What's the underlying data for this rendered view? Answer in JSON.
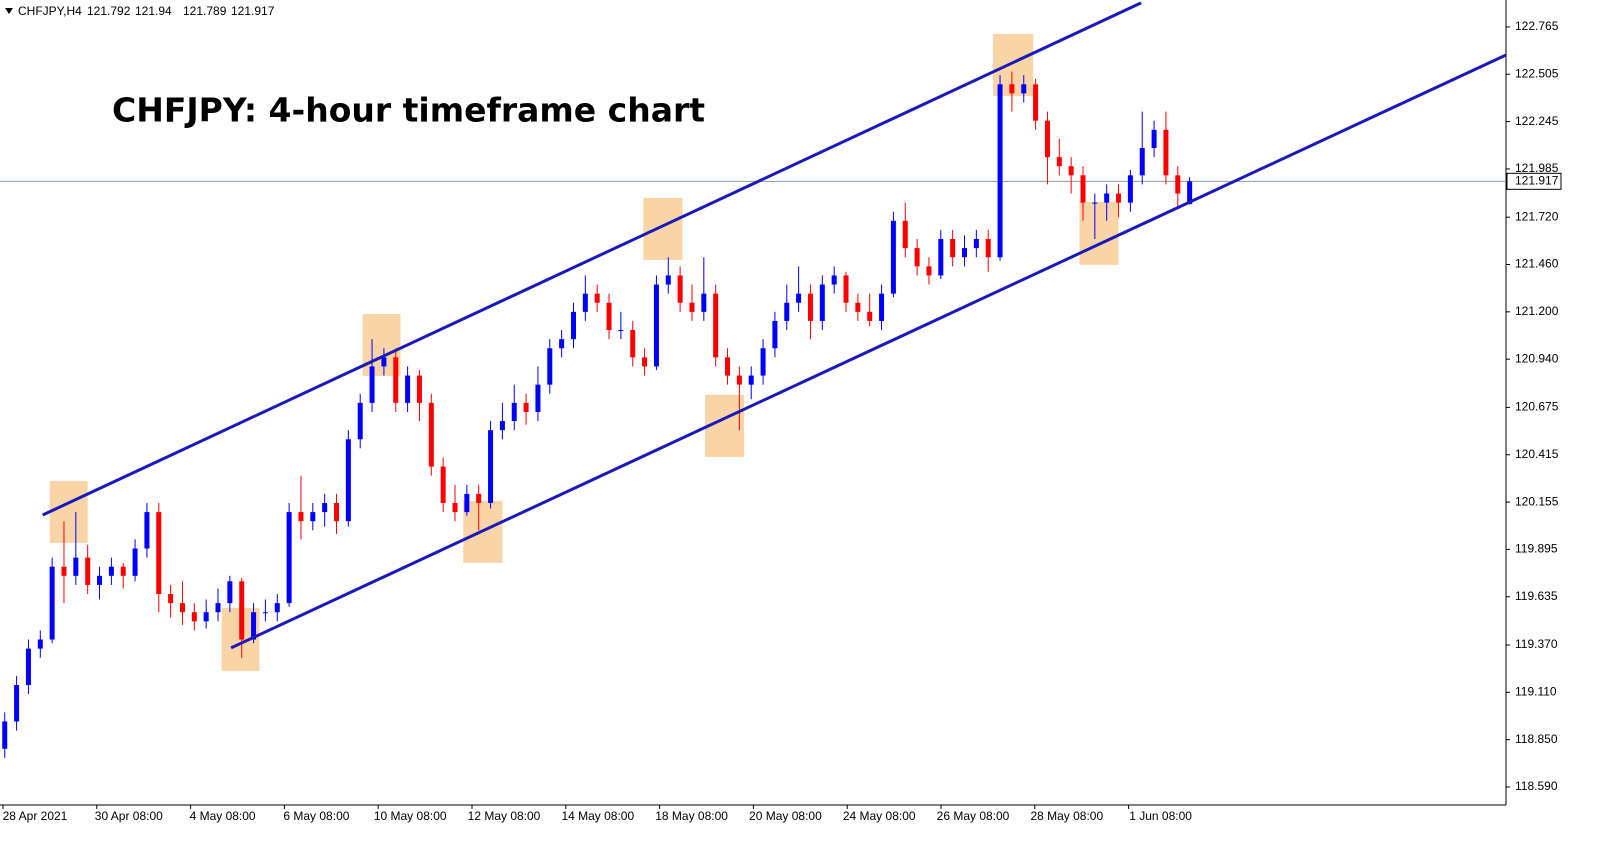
{
  "chart_data": {
    "type": "candlestick",
    "symbol": "CHFJPY,H4",
    "title": "CHFJPY: 4-hour timeframe chart",
    "up_color": "#0000ff",
    "down_color": "#ff0000",
    "ylim": [
      118.491,
      122.913
    ],
    "xlim": [
      -0.4,
      126.7
    ],
    "yticks": [
      122.765,
      122.505,
      122.245,
      121.985,
      {
        "value": 121.72,
        "label": "121.720"
      },
      {
        "value": 121.46,
        "label": "121.460"
      },
      {
        "value": 121.2,
        "label": "121.200"
      },
      {
        "value": 120.94,
        "label": "120.940"
      },
      120.675,
      120.415,
      120.155,
      119.895,
      119.635,
      {
        "value": 119.37,
        "label": "119.370"
      },
      {
        "value": 119.11,
        "label": "119.110"
      },
      {
        "value": 118.85,
        "label": "118.850"
      },
      {
        "value": 118.59,
        "label": "118.590"
      }
    ],
    "x_labels": [
      "28 Apr 2021",
      "30 Apr 08:00",
      "4 May 08:00",
      "6 May 08:00",
      "10 May 08:00",
      "12 May 08:00",
      "14 May 08:00",
      "18 May 08:00",
      "20 May 08:00",
      "24 May 08:00",
      "26 May 08:00",
      "28 May 08:00",
      "1 Jun 08:00"
    ],
    "candles": [
      [
        118.8,
        119.0,
        118.75,
        118.95
      ],
      [
        118.95,
        119.2,
        118.9,
        119.15
      ],
      [
        119.15,
        119.4,
        119.1,
        119.35
      ],
      [
        119.35,
        119.45,
        119.3,
        119.4
      ],
      [
        119.4,
        119.85,
        119.38,
        119.8
      ],
      [
        119.8,
        120.05,
        119.6,
        119.75
      ],
      [
        119.75,
        120.1,
        119.7,
        119.85
      ],
      [
        119.85,
        119.92,
        119.65,
        119.7
      ],
      [
        119.7,
        119.8,
        119.62,
        119.75
      ],
      [
        119.75,
        119.85,
        119.7,
        119.8
      ],
      [
        119.8,
        119.82,
        119.68,
        119.75
      ],
      [
        119.75,
        119.95,
        119.72,
        119.9
      ],
      [
        119.9,
        120.15,
        119.85,
        120.1
      ],
      [
        120.1,
        120.15,
        119.55,
        119.65
      ],
      [
        119.65,
        119.7,
        119.52,
        119.6
      ],
      [
        119.6,
        119.72,
        119.48,
        119.55
      ],
      [
        119.55,
        119.6,
        119.45,
        119.5
      ],
      [
        119.5,
        119.62,
        119.46,
        119.55
      ],
      [
        119.55,
        119.68,
        119.5,
        119.6
      ],
      [
        119.6,
        119.75,
        119.55,
        119.72
      ],
      [
        119.72,
        119.74,
        119.3,
        119.4
      ],
      [
        119.4,
        119.6,
        119.38,
        119.55
      ],
      [
        119.55,
        119.62,
        119.5,
        119.55
      ],
      [
        119.55,
        119.65,
        119.5,
        119.6
      ],
      [
        119.6,
        120.15,
        119.58,
        120.1
      ],
      [
        120.1,
        120.3,
        119.95,
        120.05
      ],
      [
        120.05,
        120.15,
        120.0,
        120.1
      ],
      [
        120.1,
        120.2,
        120.02,
        120.15
      ],
      [
        120.15,
        120.2,
        119.98,
        120.05
      ],
      [
        120.05,
        120.55,
        120.02,
        120.5
      ],
      [
        120.5,
        120.75,
        120.45,
        120.7
      ],
      [
        120.7,
        121.05,
        120.65,
        120.9
      ],
      [
        120.9,
        121.0,
        120.85,
        120.95
      ],
      [
        120.95,
        121.0,
        120.65,
        120.7
      ],
      [
        120.7,
        120.9,
        120.65,
        120.85
      ],
      [
        120.85,
        120.88,
        120.6,
        120.7
      ],
      [
        120.7,
        120.75,
        120.3,
        120.35
      ],
      [
        120.35,
        120.4,
        120.1,
        120.15
      ],
      [
        120.15,
        120.25,
        120.05,
        120.1
      ],
      [
        120.1,
        120.25,
        120.08,
        120.2
      ],
      [
        120.2,
        120.25,
        120.0,
        120.15
      ],
      [
        120.15,
        120.6,
        120.12,
        120.55
      ],
      [
        120.55,
        120.7,
        120.5,
        120.6
      ],
      [
        120.6,
        120.8,
        120.55,
        120.7
      ],
      [
        120.7,
        120.75,
        120.58,
        120.65
      ],
      [
        120.65,
        120.9,
        120.6,
        120.8
      ],
      [
        120.8,
        121.05,
        120.75,
        121.0
      ],
      [
        121.0,
        121.1,
        120.95,
        121.05
      ],
      [
        121.05,
        121.25,
        121.0,
        121.2
      ],
      [
        121.2,
        121.4,
        121.15,
        121.3
      ],
      [
        121.3,
        121.35,
        121.2,
        121.25
      ],
      [
        121.25,
        121.3,
        121.05,
        121.1
      ],
      [
        121.1,
        121.2,
        121.05,
        121.1
      ],
      [
        121.1,
        121.15,
        120.9,
        120.95
      ],
      [
        120.95,
        121.0,
        120.85,
        120.9
      ],
      [
        120.9,
        121.4,
        120.88,
        121.35
      ],
      [
        121.35,
        121.5,
        121.3,
        121.4
      ],
      [
        121.4,
        121.45,
        121.2,
        121.25
      ],
      [
        121.25,
        121.35,
        121.15,
        121.2
      ],
      [
        121.2,
        121.5,
        121.15,
        121.3
      ],
      [
        121.3,
        121.35,
        120.9,
        120.95
      ],
      [
        120.95,
        121.0,
        120.8,
        120.85
      ],
      [
        120.85,
        120.9,
        120.55,
        120.8
      ],
      [
        120.8,
        120.9,
        120.72,
        120.85
      ],
      [
        120.85,
        121.05,
        120.8,
        121.0
      ],
      [
        121.0,
        121.2,
        120.95,
        121.15
      ],
      [
        121.15,
        121.35,
        121.1,
        121.25
      ],
      [
        121.25,
        121.45,
        121.2,
        121.3
      ],
      [
        121.3,
        121.35,
        121.05,
        121.15
      ],
      [
        121.15,
        121.4,
        121.1,
        121.35
      ],
      [
        121.35,
        121.45,
        121.3,
        121.4
      ],
      [
        121.4,
        121.42,
        121.2,
        121.25
      ],
      [
        121.25,
        121.3,
        121.15,
        121.2
      ],
      [
        121.2,
        121.3,
        121.12,
        121.15
      ],
      [
        121.15,
        121.35,
        121.1,
        121.3
      ],
      [
        121.3,
        121.75,
        121.28,
        121.7
      ],
      [
        121.7,
        121.8,
        121.5,
        121.55
      ],
      [
        121.55,
        121.6,
        121.4,
        121.45
      ],
      [
        121.45,
        121.5,
        121.35,
        121.4
      ],
      [
        121.4,
        121.65,
        121.38,
        121.6
      ],
      [
        121.6,
        121.65,
        121.45,
        121.5
      ],
      [
        121.5,
        121.62,
        121.45,
        121.55
      ],
      [
        121.55,
        121.65,
        121.5,
        121.6
      ],
      [
        121.6,
        121.65,
        121.42,
        121.5
      ],
      [
        121.5,
        122.5,
        121.48,
        122.45
      ],
      [
        122.45,
        122.52,
        122.3,
        122.4
      ],
      [
        122.4,
        122.5,
        122.35,
        122.45
      ],
      [
        122.45,
        122.48,
        122.2,
        122.25
      ],
      [
        122.25,
        122.3,
        121.9,
        122.05
      ],
      [
        122.05,
        122.15,
        121.95,
        122.0
      ],
      [
        122.0,
        122.05,
        121.85,
        121.95
      ],
      [
        121.95,
        122.0,
        121.7,
        121.8
      ],
      [
        121.8,
        121.85,
        121.6,
        121.8
      ],
      [
        121.8,
        121.9,
        121.7,
        121.85
      ],
      [
        121.85,
        121.9,
        121.72,
        121.8
      ],
      [
        121.8,
        121.98,
        121.75,
        121.95
      ],
      [
        121.95,
        122.3,
        121.9,
        122.1
      ],
      [
        122.1,
        122.25,
        122.05,
        122.2
      ],
      [
        122.2,
        122.3,
        121.9,
        121.95
      ],
      [
        121.95,
        122.0,
        121.78,
        121.85
      ],
      [
        121.792,
        121.94,
        121.789,
        121.917
      ]
    ],
    "channels": [
      {
        "x": [
          3.2,
          95.9
        ],
        "y": [
          120.084,
          122.897
        ],
        "color": "#1a1ab8"
      },
      {
        "x": [
          19.1,
          126.7
        ],
        "y": [
          119.354,
          122.611
        ],
        "color": "#1a1ab8"
      }
    ],
    "highlights": [
      {
        "x": [
          3.8,
          7.0
        ],
        "y": [
          119.931,
          120.271
        ]
      },
      {
        "x": [
          18.3,
          21.5
        ],
        "y": [
          119.227,
          119.574
        ]
      },
      {
        "x": [
          30.2,
          33.4
        ],
        "y": [
          120.848,
          121.188
        ]
      },
      {
        "x": [
          38.7,
          42.0
        ],
        "y": [
          119.821,
          120.161
        ]
      },
      {
        "x": [
          53.9,
          57.2
        ],
        "y": [
          121.485,
          121.826
        ]
      },
      {
        "x": [
          59.1,
          62.4
        ],
        "y": [
          120.403,
          120.744
        ]
      },
      {
        "x": [
          83.4,
          86.8
        ],
        "y": [
          122.386,
          122.727
        ]
      },
      {
        "x": [
          90.7,
          94.0
        ],
        "y": [
          121.458,
          121.804
        ]
      }
    ],
    "highlight_color": "#f5c58a"
  }
}
